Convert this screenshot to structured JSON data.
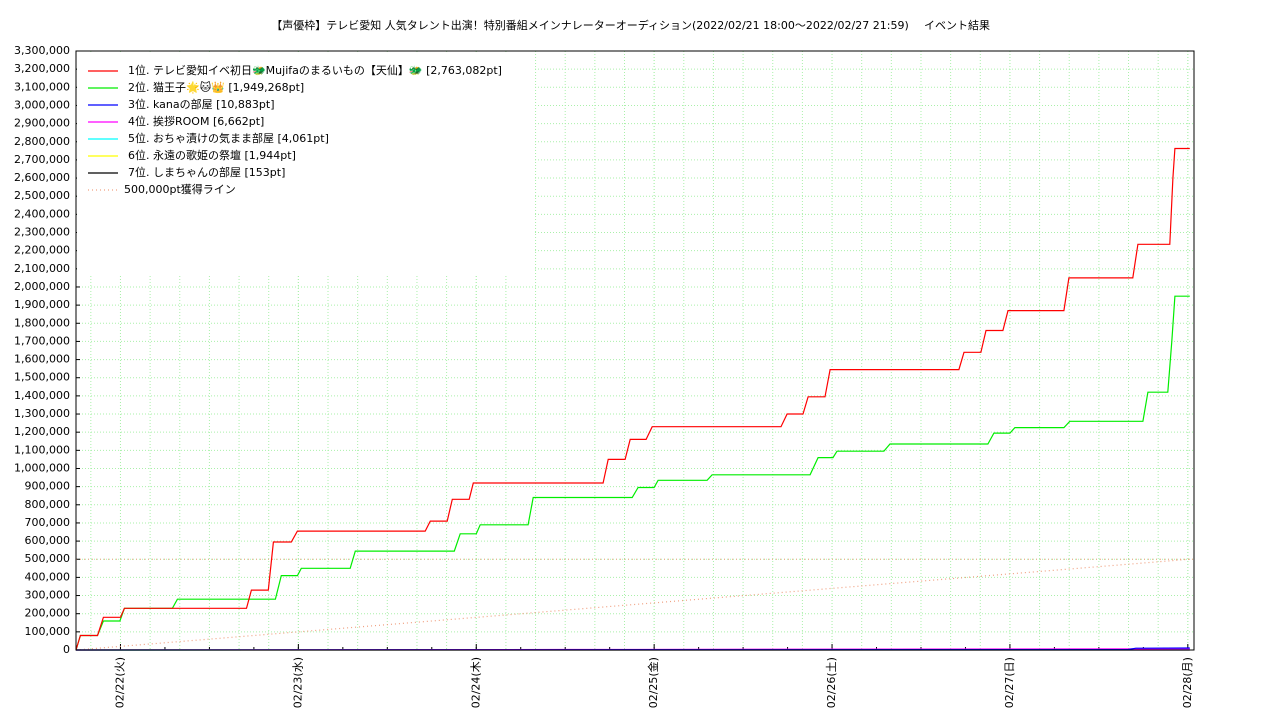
{
  "chart_data": {
    "type": "line",
    "title": "【声優枠】テレビ愛知 人気タレント出演！特別番組メインナレーターオーディション(2022/02/21 18:00～2022/02/27 21:59)",
    "subtitle": "イベント結果",
    "xlim": [
      "2022-02-21 18:00",
      "2022-02-28 00:50"
    ],
    "xticks": [
      {
        "value": "2022-02-22 00:00",
        "label": "02/22(火)"
      },
      {
        "value": "2022-02-23 00:00",
        "label": "02/23(水)"
      },
      {
        "value": "2022-02-24 00:00",
        "label": "02/24(木)"
      },
      {
        "value": "2022-02-25 00:00",
        "label": "02/25(金)"
      },
      {
        "value": "2022-02-26 00:00",
        "label": "02/26(土)"
      },
      {
        "value": "2022-02-27 00:00",
        "label": "02/27(日)"
      },
      {
        "value": "2022-02-28 00:00",
        "label": "02/28(月)"
      }
    ],
    "ylim": [
      0,
      3300000
    ],
    "yticks": [
      0,
      {
        "value": 100000,
        "label": "100,000"
      },
      {
        "value": 200000,
        "label": "200,000"
      },
      {
        "value": 300000,
        "label": "300,000"
      },
      {
        "value": 400000,
        "label": "400,000"
      },
      {
        "value": 500000,
        "label": "500,000"
      },
      {
        "value": 600000,
        "label": "600,000"
      },
      {
        "value": 700000,
        "label": "700,000"
      },
      {
        "value": 800000,
        "label": "800,000"
      },
      {
        "value": 900000,
        "label": "900,000"
      },
      {
        "value": 1000000,
        "label": "1,000,000"
      },
      {
        "value": 1100000,
        "label": "1,100,000"
      },
      {
        "value": 1200000,
        "label": "1,200,000"
      },
      {
        "value": 1300000,
        "label": "1,300,000"
      },
      {
        "value": 1400000,
        "label": "1,400,000"
      },
      {
        "value": 1500000,
        "label": "1,500,000"
      },
      {
        "value": 1600000,
        "label": "1,600,000"
      },
      {
        "value": 1700000,
        "label": "1,700,000"
      },
      {
        "value": 1800000,
        "label": "1,800,000"
      },
      {
        "value": 1900000,
        "label": "1,900,000"
      },
      {
        "value": 2000000,
        "label": "2,000,000"
      },
      {
        "value": 2100000,
        "label": "2,100,000"
      },
      {
        "value": 2200000,
        "label": "2,200,000"
      },
      {
        "value": 2300000,
        "label": "2,300,000"
      },
      {
        "value": 2400000,
        "label": "2,400,000"
      },
      {
        "value": 2500000,
        "label": "2,500,000"
      },
      {
        "value": 2600000,
        "label": "2,600,000"
      },
      {
        "value": 2700000,
        "label": "2,700,000"
      },
      {
        "value": 2800000,
        "label": "2,800,000"
      },
      {
        "value": 2900000,
        "label": "2,900,000"
      },
      {
        "value": 3000000,
        "label": "3,000,000"
      },
      {
        "value": 3100000,
        "label": "3,100,000"
      },
      {
        "value": 3200000,
        "label": "3,200,000"
      },
      {
        "value": 3300000,
        "label": "3,300,000"
      }
    ],
    "grid": true,
    "grid_color": "#aaf0aa",
    "legend": "upper left",
    "reference_hline": 500000,
    "series": [
      {
        "name": "1位. テレビ愛知イベ初日🐲Mujifaのまるいもの【天仙】🐲 [2,763,082pt]",
        "color": "#ff0000",
        "x": [
          "2022-02-21 18:00",
          "2022-02-21 18:36",
          "2022-02-21 20:54",
          "2022-02-21 21:42",
          "2022-02-22 00:00",
          "2022-02-22 00:32",
          "2022-02-22 17:00",
          "2022-02-22 17:40",
          "2022-02-22 19:57",
          "2022-02-22 20:38",
          "2022-02-22 23:03",
          "2022-02-22 23:52",
          "2022-02-23 17:07",
          "2022-02-23 17:48",
          "2022-02-23 20:05",
          "2022-02-23 20:46",
          "2022-02-23 23:03",
          "2022-02-23 23:36",
          "2022-02-24 17:07",
          "2022-02-24 17:48",
          "2022-02-24 20:05",
          "2022-02-24 20:46",
          "2022-02-24 22:55",
          "2022-02-24 23:44",
          "2022-02-25 17:07",
          "2022-02-25 17:56",
          "2022-02-25 20:05",
          "2022-02-25 20:46",
          "2022-02-25 23:03",
          "2022-02-25 23:44",
          "2022-02-26 17:07",
          "2022-02-26 17:48",
          "2022-02-26 20:05",
          "2022-02-26 20:46",
          "2022-02-26 23:03",
          "2022-02-26 23:44",
          "2022-02-27 07:17",
          "2022-02-27 07:57",
          "2022-02-27 16:35",
          "2022-02-27 17:16",
          "2022-02-27 21:34",
          "2022-02-27 21:59",
          "2022-02-27 22:15",
          "2022-02-28 00:16"
        ],
        "values": [
          0,
          80000,
          80000,
          180000,
          180000,
          230000,
          230000,
          330000,
          330000,
          595000,
          595000,
          655000,
          655000,
          710000,
          710000,
          830000,
          830000,
          920000,
          920000,
          1050000,
          1050000,
          1160000,
          1160000,
          1230000,
          1230000,
          1300000,
          1300000,
          1395000,
          1395000,
          1545000,
          1545000,
          1640000,
          1640000,
          1760000,
          1760000,
          1870000,
          1870000,
          2050000,
          2050000,
          2235000,
          2235000,
          2600000,
          2763082,
          2763082
        ]
      },
      {
        "name": "2位. 猫王子🌟🐱👑 [1,949,268pt]",
        "color": "#00ee00",
        "x": [
          "2022-02-21 18:00",
          "2022-02-21 18:36",
          "2022-02-21 20:54",
          "2022-02-21 21:42",
          "2022-02-21 23:55",
          "2022-02-22 00:32",
          "2022-02-22 07:00",
          "2022-02-22 07:41",
          "2022-02-22 20:54",
          "2022-02-22 21:42",
          "2022-02-22 23:52",
          "2022-02-23 00:24",
          "2022-02-23 07:00",
          "2022-02-23 07:41",
          "2022-02-23 21:02",
          "2022-02-23 21:50",
          "2022-02-24 00:00",
          "2022-02-24 00:32",
          "2022-02-24 07:00",
          "2022-02-24 07:41",
          "2022-02-24 21:02",
          "2022-02-24 21:50",
          "2022-02-25 00:00",
          "2022-02-25 00:32",
          "2022-02-25 07:09",
          "2022-02-25 07:49",
          "2022-02-25 21:02",
          "2022-02-25 22:07",
          "2022-02-26 00:08",
          "2022-02-26 00:40",
          "2022-02-26 07:00",
          "2022-02-26 07:49",
          "2022-02-26 21:02",
          "2022-02-26 21:50",
          "2022-02-27 00:00",
          "2022-02-27 00:40",
          "2022-02-27 07:17",
          "2022-02-27 08:05",
          "2022-02-27 17:56",
          "2022-02-27 18:37",
          "2022-02-27 21:18",
          "2022-02-27 21:50",
          "2022-02-27 22:15",
          "2022-02-28 00:16"
        ],
        "values": [
          0,
          80000,
          80000,
          160000,
          160000,
          230000,
          230000,
          280000,
          280000,
          410000,
          410000,
          450000,
          450000,
          545000,
          545000,
          640000,
          640000,
          690000,
          690000,
          840000,
          840000,
          895000,
          895000,
          935000,
          935000,
          965000,
          965000,
          1060000,
          1060000,
          1095000,
          1095000,
          1135000,
          1135000,
          1195000,
          1195000,
          1225000,
          1225000,
          1260000,
          1260000,
          1420000,
          1420000,
          1700000,
          1949268,
          1949268
        ]
      },
      {
        "name": "3位. kanaの部屋 [10,883pt]",
        "color": "#0000ff",
        "x": [
          "2022-02-21 18:00",
          "2022-02-27 16:00",
          "2022-02-27 17:00",
          "2022-02-28 00:16"
        ],
        "values": [
          0,
          3000,
          10000,
          10883
        ]
      },
      {
        "name": "4位. 挨拶ROOM [6,662pt]",
        "color": "#ff00ff",
        "x": [
          "2022-02-21 18:00",
          "2022-02-24 12:00",
          "2022-02-28 00:16"
        ],
        "values": [
          0,
          3000,
          6662
        ]
      },
      {
        "name": "5位. おちゃ漬けの気まま部屋 [4,061pt]",
        "color": "#00ffff",
        "x": [
          "2022-02-21 18:00",
          "2022-02-25 00:00",
          "2022-02-28 00:16"
        ],
        "values": [
          0,
          2000,
          4061
        ]
      },
      {
        "name": "6位. 永遠の歌姫の祭壇 [1,944pt]",
        "color": "#ffff00",
        "x": [
          "2022-02-21 18:00",
          "2022-02-25 00:00",
          "2022-02-28 00:16"
        ],
        "values": [
          0,
          1000,
          1944
        ]
      },
      {
        "name": "7位. しまちゃんの部屋 [153pt]",
        "color": "#000000",
        "x": [
          "2022-02-21 18:00",
          "2022-02-28 00:16"
        ],
        "values": [
          0,
          153
        ]
      },
      {
        "name": "500,000pt獲得ライン",
        "color": "#f0a080",
        "dashed": true,
        "x": [
          "2022-02-21 18:00",
          "2022-02-28 00:16"
        ],
        "values": [
          0,
          500000
        ]
      }
    ]
  }
}
